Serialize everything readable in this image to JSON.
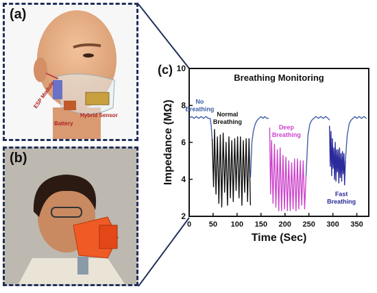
{
  "panel_a": {
    "label": "(a)",
    "annotations": {
      "esp_module": "ESP Module",
      "battery": "Battery",
      "hybrid_sensor": "Hybrid Sensor"
    }
  },
  "panel_b": {
    "label": "(b)"
  },
  "chart_label": "(c)",
  "colors": {
    "frame": "#1f2f5a",
    "no_breathing": "#3d5fa8",
    "normal": "#111111",
    "deep": "#cc44cc",
    "fast": "#2a2a9a"
  },
  "chart_data": {
    "type": "line",
    "title": "Breathing Monitoring",
    "xlabel": "Time (Sec)",
    "ylabel": "Impedance (MΩ)",
    "xlim": [
      0,
      375
    ],
    "ylim": [
      2,
      10
    ],
    "xticks": [
      0,
      50,
      100,
      150,
      200,
      250,
      300,
      350
    ],
    "yticks": [
      2,
      4,
      6,
      8,
      10
    ],
    "grid": false,
    "annotations": [
      {
        "text": "No\nBreathing",
        "x": 22,
        "y": 8.1,
        "color": "#3d5fa8"
      },
      {
        "text": "Normal\nBreathing",
        "x": 80,
        "y": 7.4,
        "color": "#111111"
      },
      {
        "text": "Deep\nBreathing",
        "x": 203,
        "y": 6.7,
        "color": "#cc44cc"
      },
      {
        "text": "Fast\nBreathing",
        "x": 318,
        "y": 3.1,
        "color": "#2a2a9a"
      }
    ],
    "series": [
      {
        "color": "#3d5fa8",
        "x": [
          0,
          5,
          10,
          15,
          20,
          25,
          30,
          35,
          40,
          44,
          46,
          48
        ],
        "y": [
          7.3,
          7.4,
          7.3,
          7.4,
          7.3,
          7.4,
          7.3,
          7.4,
          7.3,
          7.3,
          6.9,
          6.2
        ]
      },
      {
        "color": "#111111",
        "x": [
          48,
          51,
          53,
          56,
          59,
          62,
          65,
          68,
          71,
          74,
          77,
          80,
          83,
          86,
          89,
          92,
          95,
          98,
          101,
          104,
          107,
          110,
          113,
          116,
          119,
          122,
          125,
          128
        ],
        "y": [
          6.2,
          3.6,
          6.7,
          3.2,
          6.3,
          2.7,
          6.4,
          2.5,
          6.5,
          3.3,
          6.0,
          2.6,
          6.3,
          3.0,
          6.1,
          2.8,
          6.2,
          3.4,
          6.3,
          3.0,
          6.3,
          2.6,
          6.1,
          3.3,
          6.2,
          2.8,
          6.2,
          2.6
        ]
      },
      {
        "color": "#3d5fa8",
        "x": [
          128,
          131,
          134,
          138,
          142,
          146,
          150,
          154,
          158,
          162,
          166
        ],
        "y": [
          4.1,
          6.0,
          6.6,
          7.0,
          7.2,
          7.3,
          7.4,
          7.3,
          7.4,
          7.3,
          7.3
        ]
      },
      {
        "color": "#cc44cc",
        "x": [
          168,
          170,
          172,
          175,
          178,
          181,
          184,
          187,
          190,
          193,
          196,
          199,
          202,
          205,
          208,
          211,
          214,
          217,
          220,
          223,
          226,
          229,
          232,
          235,
          238,
          241,
          244
        ],
        "y": [
          6.8,
          3.2,
          6.1,
          2.7,
          5.9,
          2.5,
          5.6,
          2.3,
          5.7,
          2.3,
          5.3,
          2.4,
          5.2,
          2.3,
          5.0,
          2.3,
          4.9,
          2.4,
          5.1,
          2.3,
          5.1,
          2.4,
          5.0,
          2.6,
          5.0,
          2.4,
          4.2
        ]
      },
      {
        "color": "#3d5fa8",
        "x": [
          244,
          248,
          252,
          256,
          260,
          265,
          270,
          275,
          280,
          285,
          290,
          293
        ],
        "y": [
          4.2,
          6.4,
          7.0,
          7.2,
          7.3,
          7.4,
          7.3,
          7.4,
          7.3,
          7.4,
          7.3,
          7.2
        ]
      },
      {
        "color": "#2a2a9a",
        "x": [
          293,
          294.5,
          296,
          297.5,
          299,
          300.5,
          302,
          303.5,
          305,
          306.5,
          308,
          309.5,
          311,
          312.5,
          314,
          315.5,
          317,
          318.5,
          320,
          321.5,
          323,
          324.5,
          326
        ],
        "y": [
          6.9,
          4.7,
          6.6,
          4.2,
          6.2,
          4.6,
          5.7,
          4.0,
          6.0,
          3.9,
          5.6,
          4.4,
          5.6,
          3.8,
          5.7,
          4.1,
          5.4,
          3.9,
          5.5,
          4.3,
          5.4,
          3.7,
          5.0
        ]
      },
      {
        "color": "#3d5fa8",
        "x": [
          326,
          330,
          334,
          338,
          342,
          346,
          350,
          355,
          360,
          365,
          370
        ],
        "y": [
          5.0,
          6.4,
          7.0,
          7.2,
          7.3,
          7.4,
          7.3,
          7.4,
          7.3,
          7.4,
          7.3
        ]
      }
    ]
  }
}
